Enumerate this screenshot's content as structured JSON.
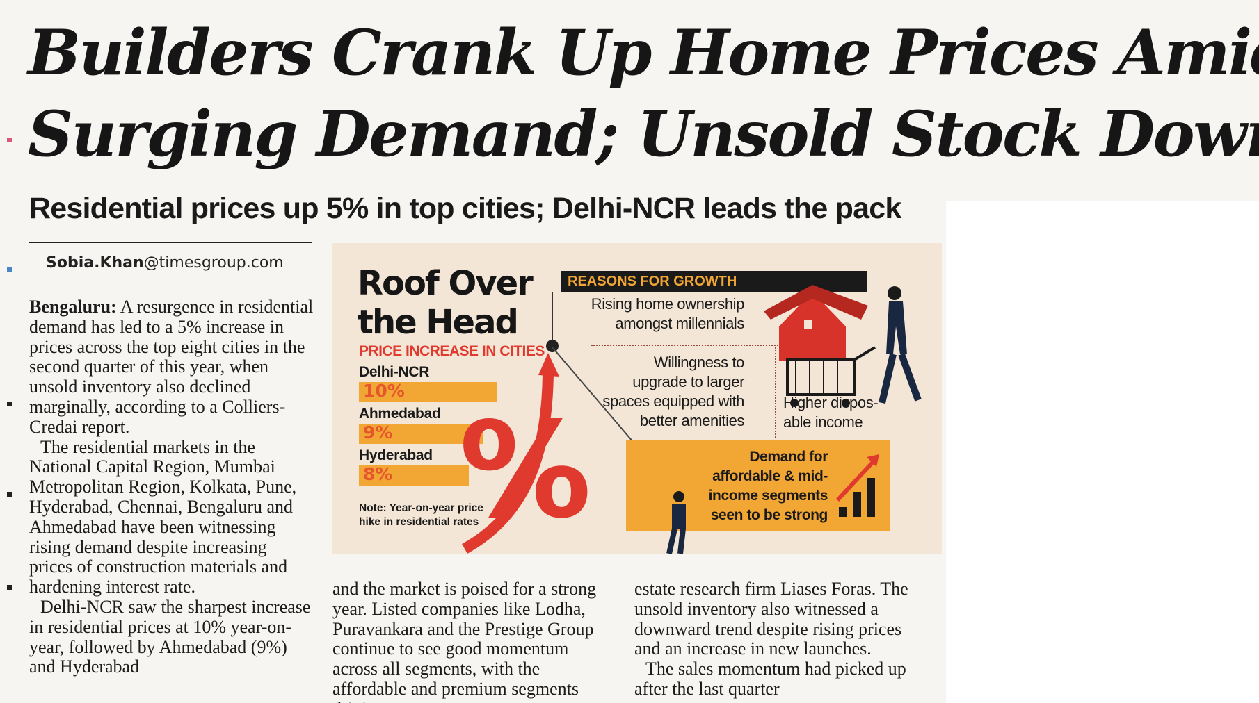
{
  "article": {
    "headline_line1": "Builders Crank Up Home Prices Amid",
    "headline_line2": "Surging Demand; Unsold Stock Down",
    "subheadline": "Residential prices up 5% in top cities; Delhi-NCR leads the pack",
    "byline_name": "Sobia.Khan",
    "byline_domain": "@timesgroup.com",
    "col1": {
      "dateline": "Bengaluru:",
      "p1": "A resurgence in residential demand has led to a 5% increase in prices across the top eight cities in the second quarter of this year, when unsold inventory also declined marginally, according to a Colliers-Credai report.",
      "p2": "The residential markets in the National Capital Region, Mumbai Metropolitan Region, Kolkata, Pune, Hyderabad, Chennai, Bengaluru and Ahmedabad have been witnessing rising demand despite increasing prices of construction materials and hardening interest rate.",
      "p3": "Delhi-NCR saw the sharpest increase in residential prices at 10% year-on-year, followed by Ahmedabad (9%) and Hyderabad"
    },
    "col2": {
      "p1": "and the market is poised for a strong year. Listed companies like Lodha, Puravankara and the Prestige Group continue to see good momentum across all segments, with the affordable and premium segments driving"
    },
    "col3": {
      "p1": "estate research firm Liases Foras. The unsold inventory also witnessed a downward trend despite rising prices and an increase in new launches.",
      "p2": "The sales momentum had picked up after the last quarter"
    }
  },
  "infographic": {
    "title_line1": "Roof Over",
    "title_line2": "the Head",
    "subtitle": "PRICE INCREASE IN CITIES",
    "cities": [
      {
        "name": "Delhi-NCR",
        "label": "10%"
      },
      {
        "name": "Ahmedabad",
        "label": "9%"
      },
      {
        "name": "Hyderabad",
        "label": "8%"
      }
    ],
    "note_line1": "Note: Year-on-year price",
    "note_line2": "hike in residential rates",
    "percent_symbol": "%",
    "reasons_title": "REASONS FOR GROWTH",
    "reason1_line1": "Rising home ownership",
    "reason1_line2": "amongst millennials",
    "reason2_line1": "Willingness to",
    "reason2_line2": "upgrade to larger",
    "reason2_line3": "spaces equipped with",
    "reason2_line4": "better amenities",
    "reason3_line1": "Higher dispos-",
    "reason3_line2": "able income",
    "reason4_line1": "Demand for",
    "reason4_line2": "affordable & mid-",
    "reason4_line3": "income segments",
    "reason4_line4": "seen to be strong",
    "colors": {
      "orange": "#f2a633",
      "red": "#e03a2f",
      "dark": "#1a1a1a"
    }
  },
  "chart_data": {
    "type": "bar",
    "title": "PRICE INCREASE IN CITIES",
    "categories": [
      "Delhi-NCR",
      "Ahmedabad",
      "Hyderabad"
    ],
    "values": [
      10,
      9,
      8
    ],
    "unit": "%",
    "orientation": "horizontal"
  }
}
